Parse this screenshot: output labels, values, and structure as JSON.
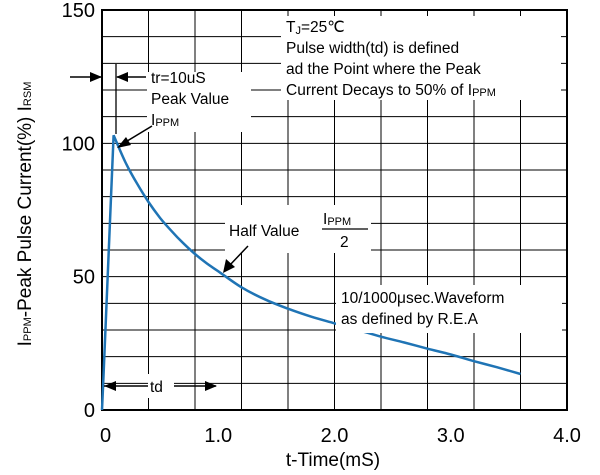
{
  "chart_data": {
    "type": "line",
    "xlabel": "t-Time(mS)",
    "ylabel": {
      "main": "I",
      "sub1": "PPM",
      "mid": "-Peak Pulse Current(%) I",
      "sub2": "RSM"
    },
    "xlim": [
      0,
      4.0
    ],
    "ylim": [
      0,
      150
    ],
    "x_ticks": [
      {
        "value": 0,
        "label": "0"
      },
      {
        "value": 1.0,
        "label": "1.0"
      },
      {
        "value": 2.0,
        "label": "2.0"
      },
      {
        "value": 3.0,
        "label": "3.0"
      },
      {
        "value": 4.0,
        "label": "4.0"
      }
    ],
    "y_ticks": [
      {
        "value": 0,
        "label": "0"
      },
      {
        "value": 50,
        "label": "50"
      },
      {
        "value": 100,
        "label": "100"
      },
      {
        "value": 150,
        "label": "150"
      }
    ],
    "grid": true,
    "series": [
      {
        "color": "#1f74b5",
        "x": [
          0,
          0.01,
          0.1,
          0.2,
          0.3,
          0.4,
          0.5,
          0.6,
          0.7,
          0.8,
          0.9,
          1.0,
          1.2,
          1.4,
          1.6,
          1.8,
          2.0,
          2.2,
          2.4,
          2.6,
          2.8,
          3.0,
          3.2,
          3.4,
          3.6
        ],
        "y": [
          0,
          10,
          103,
          93,
          85,
          78,
          72,
          67,
          62.5,
          58.5,
          55,
          52,
          46,
          41.5,
          38,
          35,
          32.5,
          30,
          27.5,
          25.3,
          23,
          20.8,
          18.3,
          16,
          13.5
        ]
      }
    ],
    "annotations": {
      "tj": {
        "main": "T",
        "sub": "J",
        "rest": "=25℃"
      },
      "pulse_line1": "Pulse width(td) is defined",
      "pulse_line2": "ad the Point where the Peak",
      "pulse_line3_main": "Current Decays to 50% of I",
      "pulse_line3_sub": "PPM",
      "tr": "tr=10uS",
      "peak_value": "Peak Value",
      "ippm_main": "I",
      "ippm_sub": "PPM",
      "half_value": "Half Value",
      "half_num_main": "I",
      "half_num_sub": "PPM",
      "half_den": "2",
      "waveform_line1": "10/1000μsec.Waveform",
      "waveform_line2": "as defined by R.E.A",
      "td": "td"
    }
  }
}
